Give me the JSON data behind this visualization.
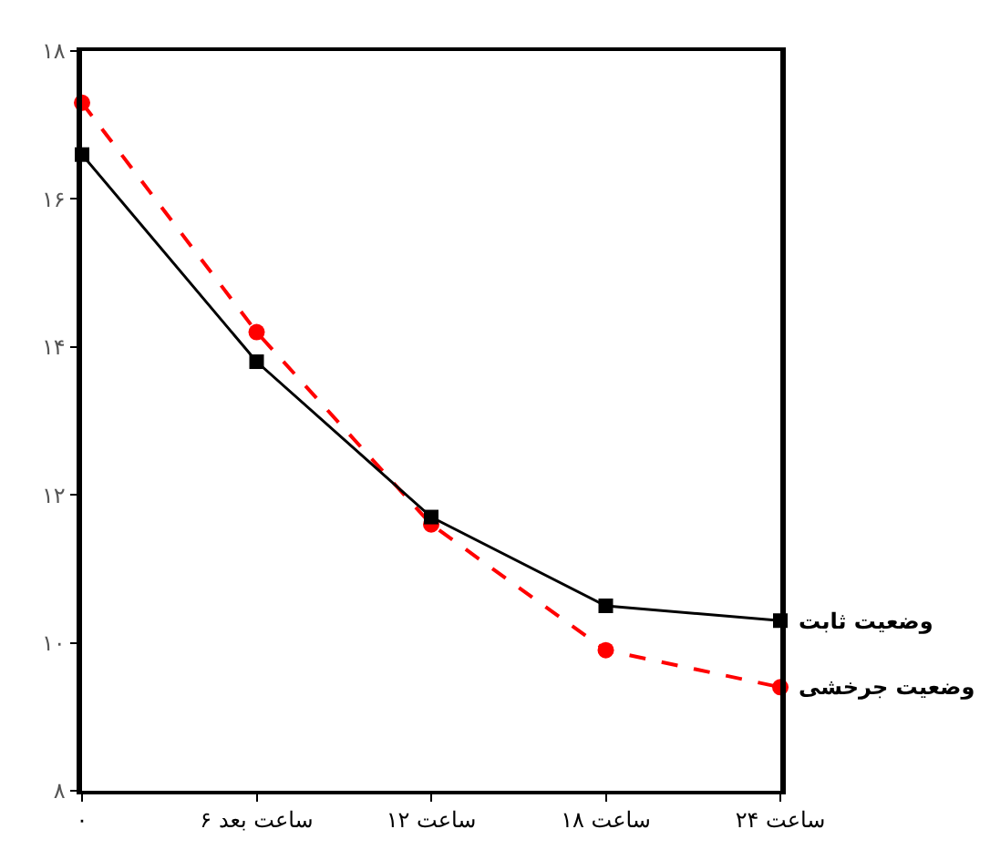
{
  "chart_data": {
    "type": "line",
    "categories": [
      "۰",
      "۶ ساعت بعد",
      "۱۲ ساعت",
      "۱۸ ساعت",
      "۲۴ ساعت"
    ],
    "series": [
      {
        "name": "وضعیت ثابت",
        "color": "#000000",
        "values": [
          16.6,
          13.8,
          11.7,
          10.5,
          10.3
        ],
        "marker": "square",
        "line_style": "solid"
      },
      {
        "name": "وضعیت جرخشی",
        "color": "#ff0000",
        "values": [
          17.3,
          14.2,
          11.6,
          9.9,
          9.4
        ],
        "marker": "circle",
        "line_style": "dashed"
      }
    ],
    "ylim": [
      8,
      18
    ],
    "yticks": [
      {
        "value": 8,
        "label": "۸"
      },
      {
        "value": 10,
        "label": "۱۰"
      },
      {
        "value": 12,
        "label": "۱۲"
      },
      {
        "value": 14,
        "label": "۱۴"
      },
      {
        "value": 16,
        "label": "۱۶"
      },
      {
        "value": 18,
        "label": "۱۸"
      }
    ],
    "legend": false
  }
}
